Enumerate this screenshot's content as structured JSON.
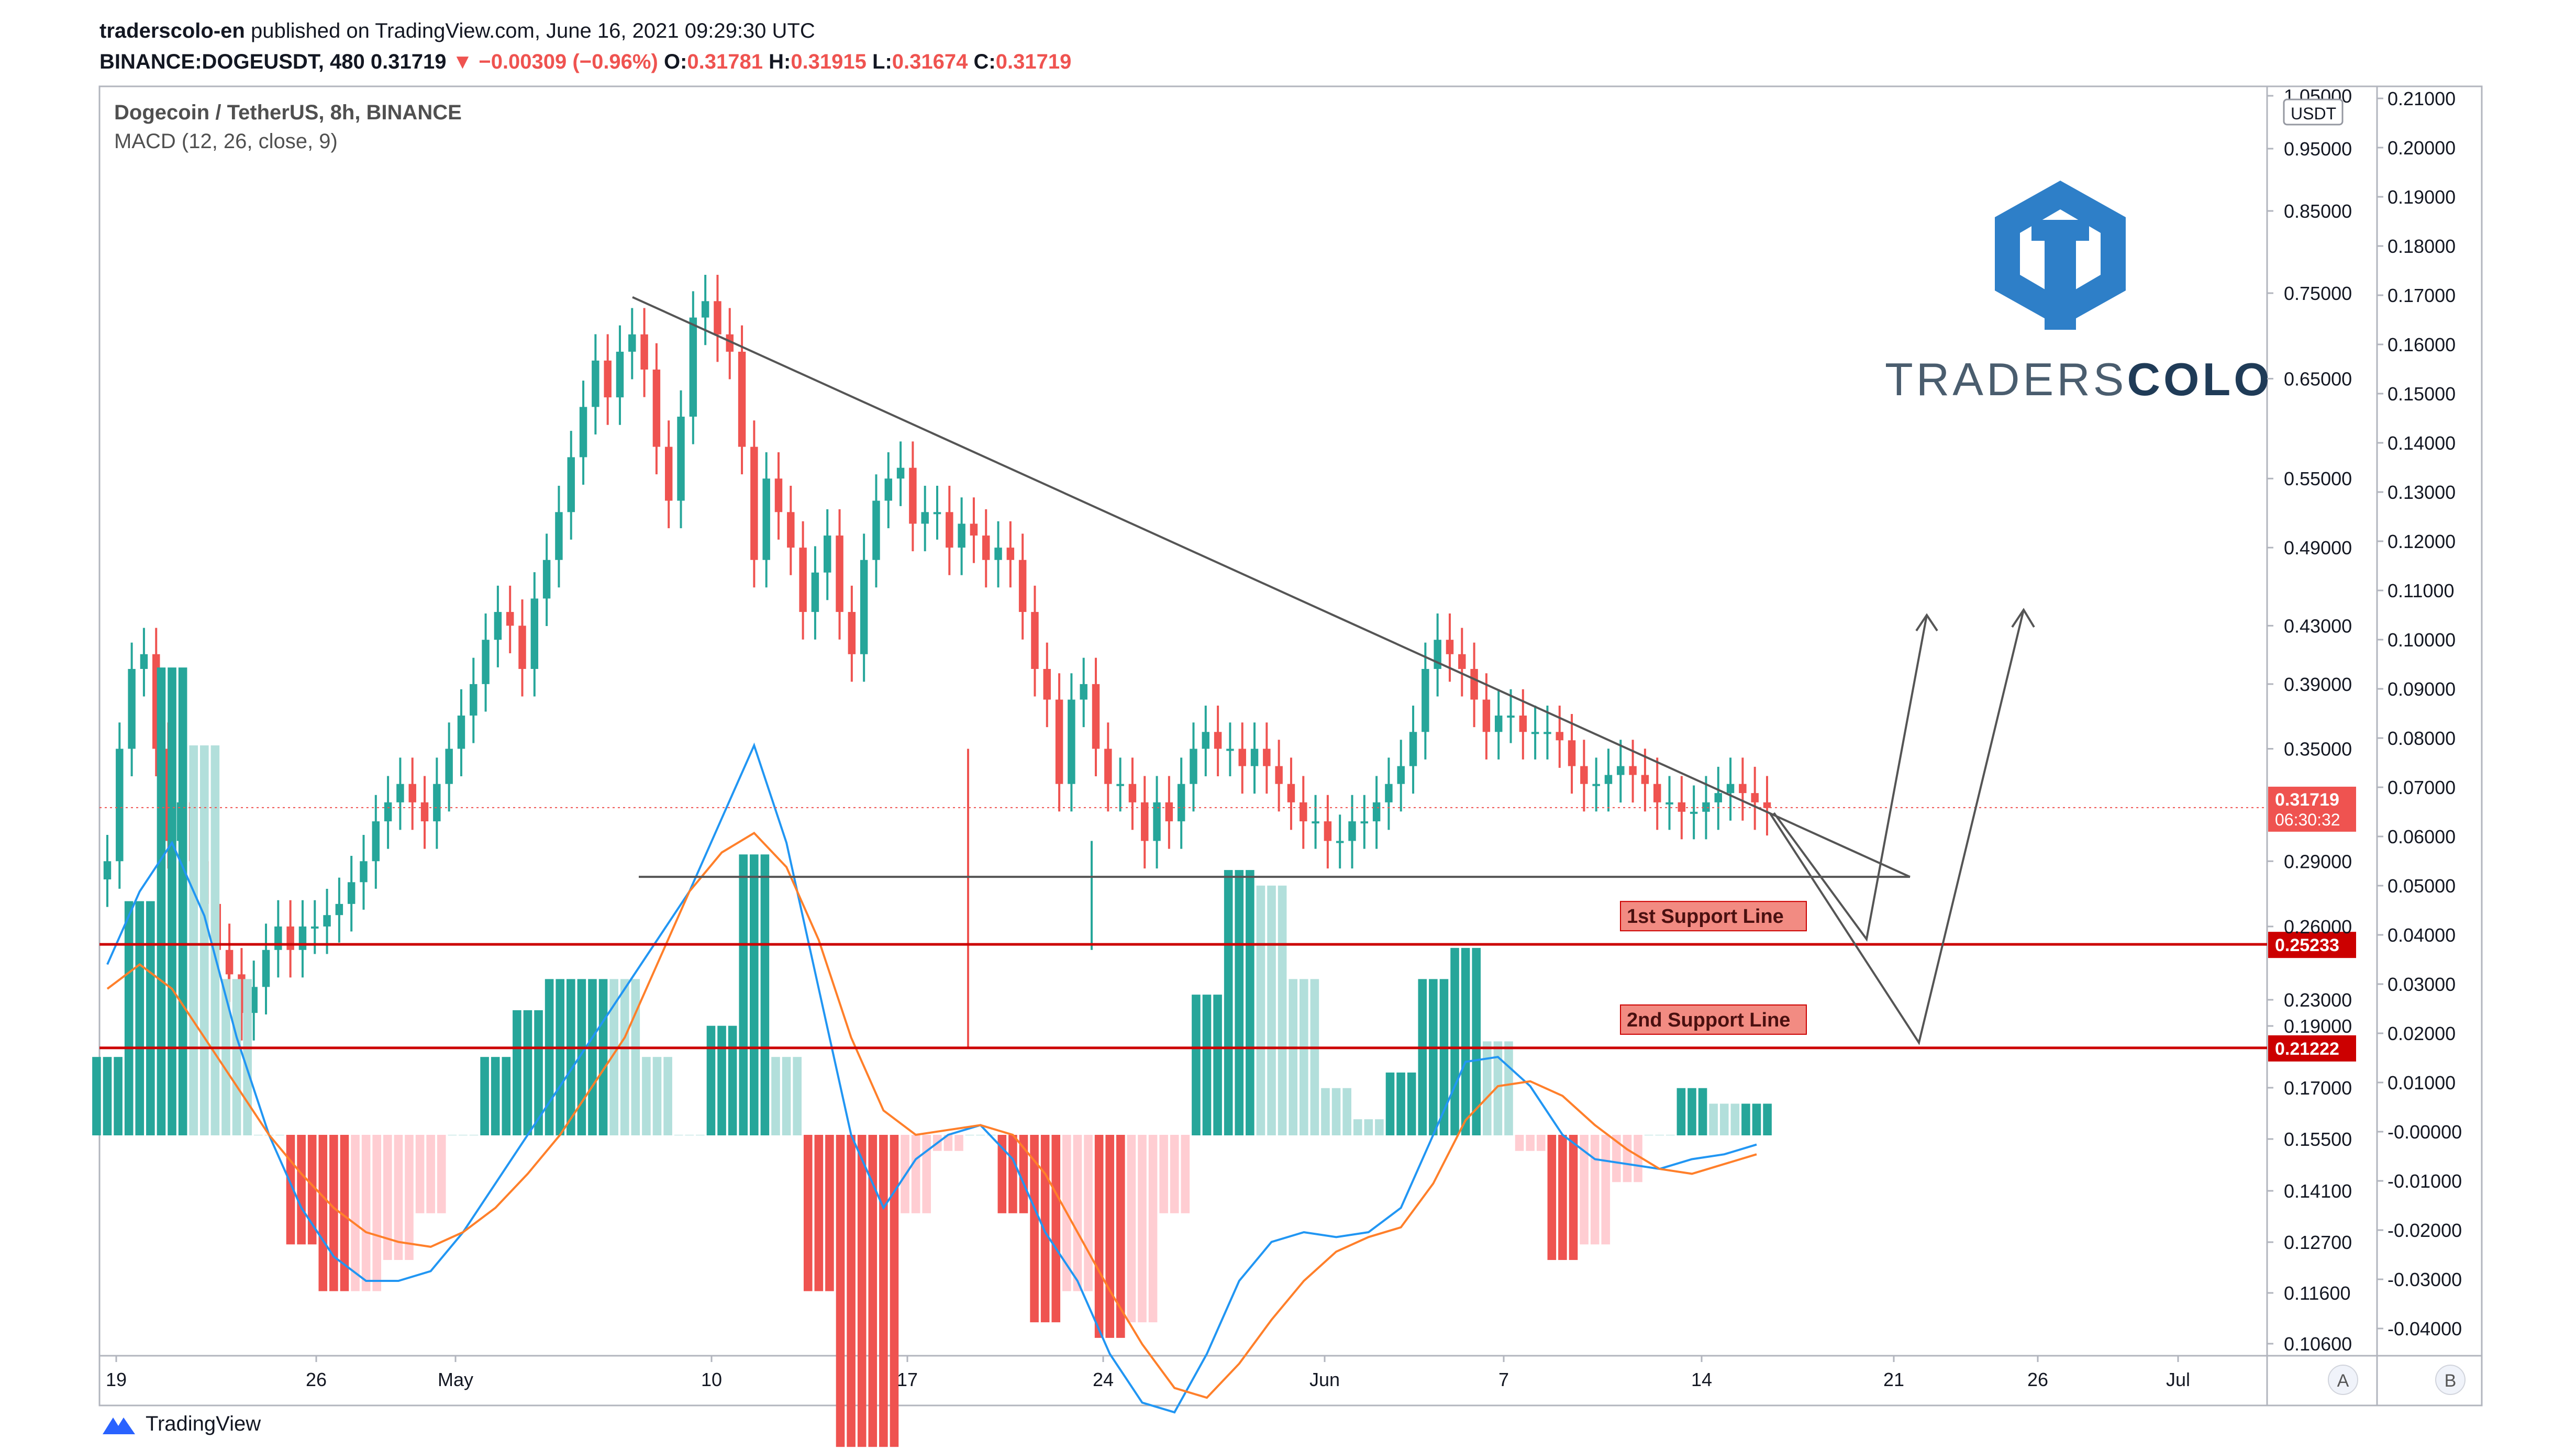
{
  "header": {
    "publisher": "traderscolo-en",
    "published_text": "published on TradingView.com, June 16, 2021 09:29:30 UTC",
    "symbol": "BINANCE:DOGEUSDT, 480",
    "last": "0.31719",
    "change": "−0.00309 (−0.96%)",
    "o_label": "O:",
    "o": "0.31781",
    "h_label": "H:",
    "h": "0.31915",
    "l_label": "L:",
    "l": "0.31674",
    "c_label": "C:",
    "c": "0.31719"
  },
  "legend": {
    "pair": "Dogecoin / TetherUS, 8h, BINANCE",
    "indicator": "MACD (12, 26, close, 9)"
  },
  "logo": {
    "word_light": "TRADERS",
    "word_bold": "COLO"
  },
  "footer": {
    "brand": "TradingView"
  },
  "colors": {
    "up": "#26a69a",
    "down": "#ef5350",
    "macd": "#2196f3",
    "signal": "#ff7f2a",
    "support": "#cc0000",
    "trendline": "#555555",
    "logo_blue": "#2e7fc8"
  },
  "chart_data": {
    "type": "candlestick",
    "title": "Dogecoin / TetherUS, 8h, BINANCE",
    "price_axis": {
      "scale": "log",
      "unit": "USDT",
      "ticks": [
        "1.05000",
        "0.95000",
        "0.85000",
        "0.75000",
        "0.65000",
        "0.55000",
        "0.49000",
        "0.43000",
        "0.39000",
        "0.35000",
        "0.31719",
        "0.29000",
        "0.26000",
        "0.25233",
        "0.23000",
        "0.21222",
        "0.19000",
        "0.17000",
        "0.15500",
        "0.14100",
        "0.12700",
        "0.11600",
        "0.10600"
      ],
      "current_price": "0.31719",
      "countdown": "06:30:32"
    },
    "time_axis": {
      "labels": [
        "19",
        "26",
        "May",
        "10",
        "17",
        "24",
        "Jun",
        "7",
        "14",
        "21",
        "26",
        "Jul"
      ]
    },
    "macd_axis": {
      "ticks": [
        "0.21000",
        "0.20000",
        "0.19000",
        "0.18000",
        "0.17000",
        "0.16000",
        "0.15000",
        "0.14000",
        "0.13000",
        "0.12000",
        "0.11000",
        "0.10000",
        "0.09000",
        "0.08000",
        "0.07000",
        "0.06000",
        "0.05000",
        "0.04000",
        "0.03000",
        "0.02000",
        "0.01000",
        "-0.00000",
        "-0.01000",
        "-0.02000",
        "-0.03000",
        "-0.04000"
      ]
    },
    "scale_buttons": [
      "A",
      "B"
    ],
    "close_series": [
      0.29,
      0.35,
      0.4,
      0.41,
      0.35,
      0.3,
      0.32,
      0.29,
      0.27,
      0.25,
      0.24,
      0.225,
      0.235,
      0.25,
      0.26,
      0.25,
      0.26,
      0.26,
      0.265,
      0.27,
      0.28,
      0.29,
      0.31,
      0.32,
      0.33,
      0.32,
      0.31,
      0.33,
      0.35,
      0.37,
      0.39,
      0.42,
      0.44,
      0.43,
      0.4,
      0.45,
      0.48,
      0.52,
      0.57,
      0.62,
      0.67,
      0.63,
      0.68,
      0.7,
      0.66,
      0.58,
      0.53,
      0.61,
      0.72,
      0.74,
      0.7,
      0.68,
      0.58,
      0.48,
      0.55,
      0.52,
      0.49,
      0.44,
      0.47,
      0.5,
      0.44,
      0.41,
      0.48,
      0.53,
      0.55,
      0.56,
      0.51,
      0.52,
      0.52,
      0.49,
      0.51,
      0.5,
      0.48,
      0.49,
      0.48,
      0.44,
      0.4,
      0.38,
      0.33,
      0.38,
      0.39,
      0.35,
      0.33,
      0.33,
      0.32,
      0.3,
      0.32,
      0.31,
      0.33,
      0.35,
      0.36,
      0.35,
      0.35,
      0.34,
      0.35,
      0.34,
      0.33,
      0.32,
      0.31,
      0.31,
      0.3,
      0.3,
      0.31,
      0.31,
      0.32,
      0.33,
      0.34,
      0.36,
      0.4,
      0.42,
      0.41,
      0.4,
      0.38,
      0.36,
      0.37,
      0.37,
      0.36,
      0.36,
      0.36,
      0.355,
      0.34,
      0.33,
      0.33,
      0.335,
      0.34,
      0.335,
      0.33,
      0.32,
      0.32,
      0.315,
      0.315,
      0.32,
      0.325,
      0.33,
      0.325,
      0.32,
      0.317
    ],
    "macd_series": [
      0.035,
      0.05,
      0.06,
      0.045,
      0.02,
      0.0,
      -0.015,
      -0.025,
      -0.03,
      -0.03,
      -0.028,
      -0.02,
      -0.01,
      0.0,
      0.01,
      0.02,
      0.03,
      0.04,
      0.05,
      0.065,
      0.08,
      0.06,
      0.03,
      0.0,
      -0.015,
      -0.005,
      0.0,
      0.002,
      -0.005,
      -0.02,
      -0.03,
      -0.045,
      -0.055,
      -0.057,
      -0.045,
      -0.03,
      -0.022,
      -0.02,
      -0.021,
      -0.02,
      -0.015,
      0.0,
      0.015,
      0.016,
      0.01,
      0.0,
      -0.005,
      -0.006,
      -0.007,
      -0.005,
      -0.004,
      -0.002
    ],
    "signal_series": [
      0.03,
      0.035,
      0.03,
      0.02,
      0.01,
      0.0,
      -0.008,
      -0.015,
      -0.02,
      -0.022,
      -0.023,
      -0.02,
      -0.015,
      -0.008,
      0.0,
      0.01,
      0.02,
      0.035,
      0.05,
      0.058,
      0.062,
      0.055,
      0.04,
      0.02,
      0.005,
      0.0,
      0.001,
      0.002,
      0.0,
      -0.008,
      -0.02,
      -0.032,
      -0.043,
      -0.052,
      -0.054,
      -0.047,
      -0.038,
      -0.03,
      -0.024,
      -0.021,
      -0.019,
      -0.01,
      0.003,
      0.01,
      0.011,
      0.008,
      0.002,
      -0.003,
      -0.007,
      -0.008,
      -0.006,
      -0.004
    ],
    "annotations": {
      "support_1": {
        "label": "1st Support Line",
        "price": 0.25233,
        "price_label": "0.25233"
      },
      "support_2": {
        "label": "2nd Support Line",
        "price": 0.21222,
        "price_label": "0.21222"
      },
      "triangle_base": 0.2825,
      "descending_trendline": {
        "from": 0.745,
        "to": 0.2825
      },
      "scenarios": [
        "bounce from 1st support",
        "bounce from 2nd support"
      ]
    }
  }
}
